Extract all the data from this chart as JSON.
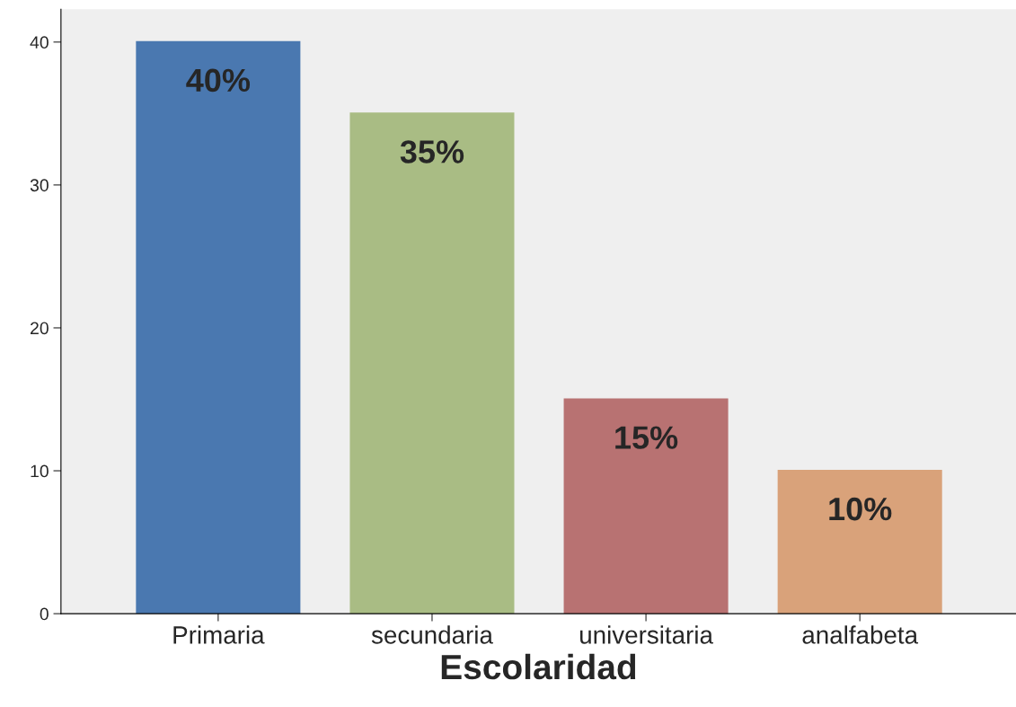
{
  "chart_data": {
    "type": "bar",
    "xlabel": "Escolaridad",
    "categories": [
      "Primaria",
      "secundaria",
      "universitaria",
      "analfabeta"
    ],
    "values": [
      40,
      35,
      15,
      10
    ],
    "colors": [
      "#4a78b0",
      "#a9bc84",
      "#b87272",
      "#d9a27a"
    ],
    "value_labels": [
      "40%",
      "35%",
      "15%",
      "10%"
    ],
    "ylim": [
      0,
      42.3
    ],
    "yticks": [
      0,
      10,
      20,
      30,
      40
    ],
    "grid": false,
    "legend": false
  }
}
